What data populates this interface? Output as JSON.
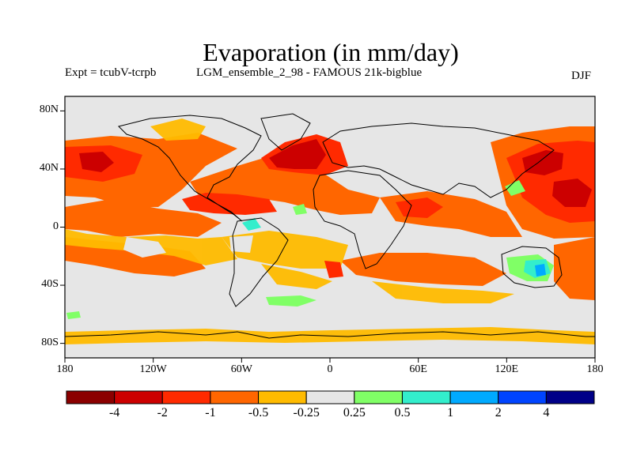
{
  "title": "Evaporation (in mm/day)",
  "experiment_label": "Expt = tcubV-tcrpb",
  "run_label": "LGM_ensemble_2_98 - FAMOUS 21k-bigblue",
  "season": "DJF",
  "map": {
    "projection": "cylindrical equidistant",
    "lon_range": [
      -180,
      180
    ],
    "lat_range": [
      -90,
      90
    ],
    "lat_ticks": [
      {
        "value": 80,
        "label": "80N"
      },
      {
        "value": 40,
        "label": "40N"
      },
      {
        "value": 0,
        "label": "0"
      },
      {
        "value": -40,
        "label": "40S"
      },
      {
        "value": -80,
        "label": "80S"
      }
    ],
    "lon_ticks": [
      {
        "value": -180,
        "label": "180"
      },
      {
        "value": -120,
        "label": "120W"
      },
      {
        "value": -60,
        "label": "60W"
      },
      {
        "value": 0,
        "label": "0"
      },
      {
        "value": 60,
        "label": "60E"
      },
      {
        "value": 120,
        "label": "120E"
      },
      {
        "value": 180,
        "label": "180"
      }
    ],
    "background_color": "#e6e6e6"
  },
  "colorbar": {
    "colors": [
      "#8b0000",
      "#cc0000",
      "#ff2a00",
      "#ff6600",
      "#ffbb00",
      "#e6e6e6",
      "#80ff66",
      "#33eecc",
      "#00aaff",
      "#0044ff",
      "#000088"
    ],
    "labels": [
      {
        "index": 1,
        "text": "-4"
      },
      {
        "index": 2,
        "text": "-2"
      },
      {
        "index": 3,
        "text": "-1"
      },
      {
        "index": 4,
        "text": "-0.5"
      },
      {
        "index": 5,
        "text": "-0.25"
      },
      {
        "index": 6,
        "text": "0.25"
      },
      {
        "index": 7,
        "text": "0.5"
      },
      {
        "index": 8,
        "text": "1"
      },
      {
        "index": 9,
        "text": "2"
      },
      {
        "index": 10,
        "text": "4"
      }
    ]
  }
}
